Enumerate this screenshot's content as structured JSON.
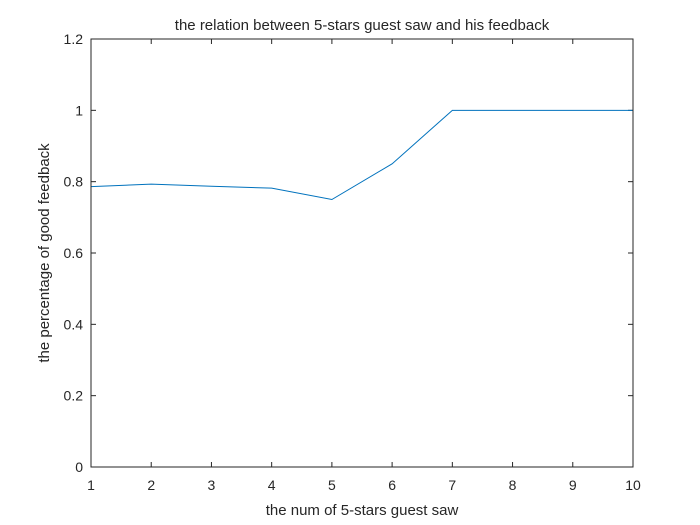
{
  "chart_data": {
    "type": "line",
    "title": "the relation between 5-stars guest saw and his feedback",
    "xlabel": "the num of 5-stars guest saw",
    "ylabel": "the percentage of good feedback",
    "xlim": [
      1,
      10
    ],
    "ylim": [
      0,
      1.2
    ],
    "xticks": [
      1,
      2,
      3,
      4,
      5,
      6,
      7,
      8,
      9,
      10
    ],
    "yticks": [
      0,
      0.2,
      0.4,
      0.6,
      0.8,
      1,
      1.2
    ],
    "ytick_labels": [
      "0",
      "0.2",
      "0.4",
      "0.6",
      "0.8",
      "1",
      "1.2"
    ],
    "grid": false,
    "series": [
      {
        "color": "#0072bd",
        "x": [
          1,
          2,
          3,
          4,
          5,
          6,
          7,
          8,
          9,
          10
        ],
        "y": [
          0.786,
          0.793,
          0.787,
          0.782,
          0.75,
          0.85,
          1.0,
          1.0,
          1.0,
          1.0
        ]
      }
    ]
  }
}
